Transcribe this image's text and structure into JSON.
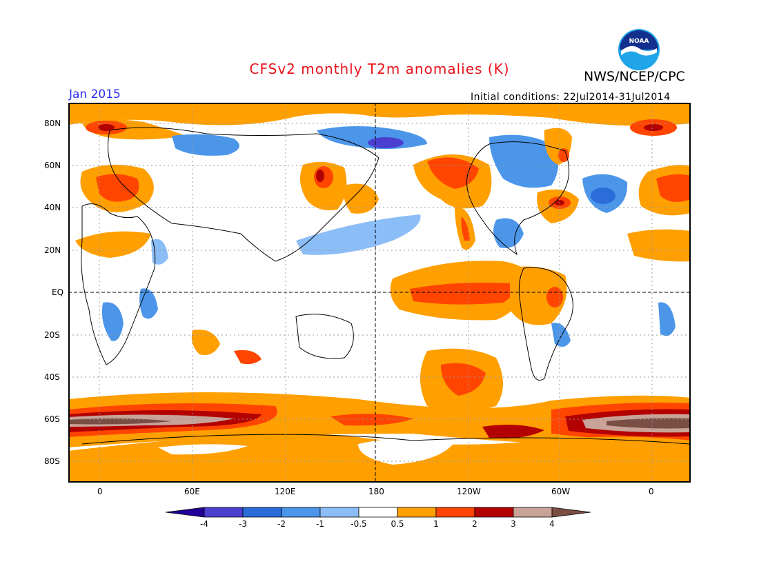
{
  "header": {
    "title": "CFSv2 monthly T2m anomalies (K)",
    "agency": "NWS/NCEP/CPC",
    "logo_text": "NOAA",
    "valid_month": "Jan 2015",
    "initial_conditions": "Initial conditions: 22Jul2014-31Jul2014"
  },
  "map": {
    "lat_labels": [
      "80N",
      "60N",
      "40N",
      "20N",
      "EQ",
      "20S",
      "40S",
      "60S",
      "80S"
    ],
    "lon_labels": [
      "0",
      "60E",
      "120E",
      "180",
      "120W",
      "60W",
      "0"
    ]
  },
  "colorbar": {
    "labels": [
      "-4",
      "-3",
      "-2",
      "-1",
      "-0.5",
      "0.5",
      "1",
      "2",
      "3",
      "4"
    ],
    "colors": [
      "#200096",
      "#4b3fd0",
      "#2a6cd8",
      "#4c96ea",
      "#8bbdf7",
      "#ffffff",
      "#ff9f00",
      "#ff4500",
      "#b30000",
      "#c9a298",
      "#7a4e43"
    ]
  },
  "colors": {
    "title": "#e8111a",
    "valid_month": "#2a2af0",
    "anomaly_warm_1": "#ff9f00",
    "anomaly_warm_2": "#ff4500",
    "anomaly_warm_3": "#b30000",
    "anomaly_warm_4": "#c9a298",
    "anomaly_warm_5": "#7a4e43",
    "anomaly_cool_1": "#8bbdf7",
    "anomaly_cool_2": "#4c96ea",
    "anomaly_cool_3": "#2a6cd8",
    "anomaly_cool_4": "#4b3fd0"
  }
}
